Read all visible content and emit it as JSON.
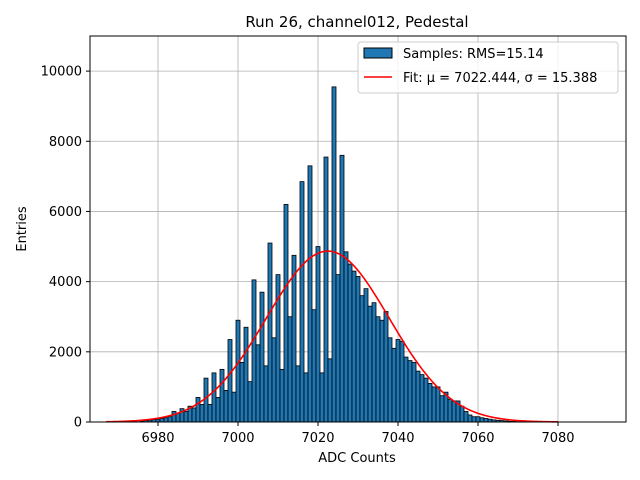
{
  "chart_data": {
    "type": "bar",
    "title": "Run 26, channel012, Pedestal",
    "xlabel": "ADC Counts",
    "ylabel": "Entries",
    "xlim": [
      6963,
      7097
    ],
    "ylim": [
      0,
      11000
    ],
    "x_ticks": [
      6980,
      7000,
      7020,
      7040,
      7060,
      7080
    ],
    "y_ticks": [
      0,
      2000,
      4000,
      6000,
      8000,
      10000
    ],
    "grid": true,
    "legend_placement": "top-right",
    "bin_width": 1,
    "series": [
      {
        "name": "Samples: RMS=15.14",
        "color": "#1f77b4",
        "edgecolor": "#000000",
        "x": [
          6976,
          6977,
          6978,
          6979,
          6980,
          6981,
          6982,
          6983,
          6984,
          6985,
          6986,
          6987,
          6988,
          6989,
          6990,
          6991,
          6992,
          6993,
          6994,
          6995,
          6996,
          6997,
          6998,
          6999,
          7000,
          7001,
          7002,
          7003,
          7004,
          7005,
          7006,
          7007,
          7008,
          7009,
          7010,
          7011,
          7012,
          7013,
          7014,
          7015,
          7016,
          7017,
          7018,
          7019,
          7020,
          7021,
          7022,
          7023,
          7024,
          7025,
          7026,
          7027,
          7028,
          7029,
          7030,
          7031,
          7032,
          7033,
          7034,
          7035,
          7036,
          7037,
          7038,
          7039,
          7040,
          7041,
          7042,
          7043,
          7044,
          7045,
          7046,
          7047,
          7048,
          7049,
          7050,
          7051,
          7052,
          7053,
          7054,
          7055,
          7056,
          7057,
          7058,
          7059,
          7060,
          7061,
          7062,
          7063,
          7064,
          7065,
          7066,
          7067,
          7068,
          7069,
          7070
        ],
        "values": [
          30,
          40,
          50,
          70,
          80,
          100,
          120,
          150,
          300,
          250,
          380,
          300,
          450,
          400,
          700,
          500,
          1250,
          500,
          1400,
          700,
          1500,
          900,
          2350,
          850,
          2900,
          1700,
          2700,
          1150,
          4050,
          2200,
          3700,
          1600,
          5100,
          2400,
          4200,
          1500,
          6200,
          3000,
          4750,
          1600,
          6850,
          1400,
          7300,
          3200,
          5000,
          1400,
          7550,
          1800,
          9550,
          4200,
          7600,
          4850,
          4500,
          4300,
          4150,
          3600,
          3800,
          3300,
          3400,
          3000,
          2900,
          3150,
          2400,
          2100,
          2350,
          2300,
          1850,
          1750,
          1700,
          1450,
          1350,
          1250,
          1100,
          1000,
          1000,
          750,
          850,
          650,
          600,
          600,
          450,
          300,
          200,
          150,
          150,
          120,
          100,
          80,
          60,
          50,
          40,
          30,
          20,
          15,
          10
        ]
      },
      {
        "name": "Fit: μ = 7022.444, σ = 15.388",
        "type": "line",
        "color": "#ff0000",
        "mu": 7022.444,
        "sigma": 15.388,
        "amplitude": 4870,
        "x_range": [
          6967,
          7080
        ]
      }
    ]
  }
}
